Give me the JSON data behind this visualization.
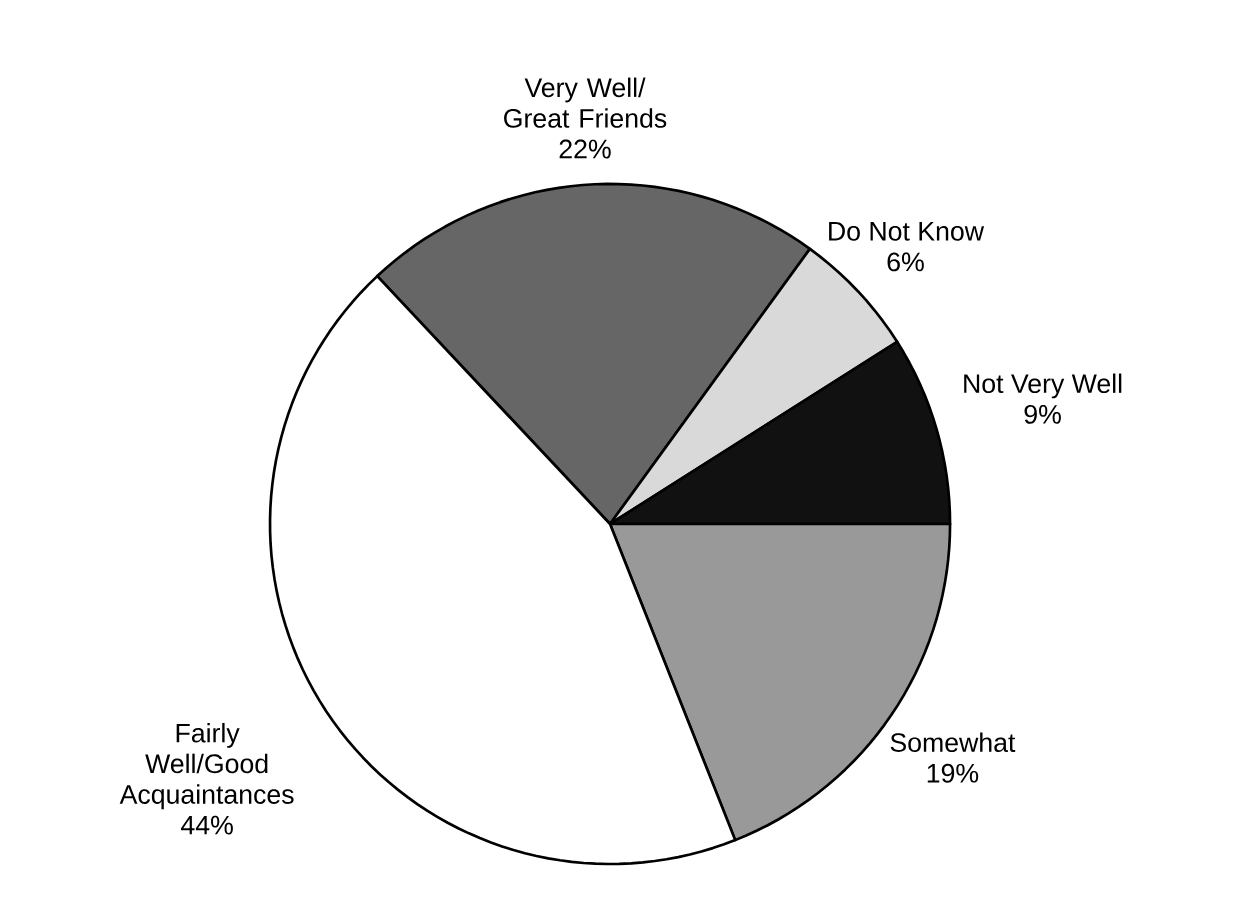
{
  "chart_data": {
    "type": "pie",
    "categories": [
      "Very Well/ Great Friends",
      "Do Not Know",
      "Not Very Well",
      "Somewhat",
      "Fairly Well/Good Acquaintances"
    ],
    "values": [
      22,
      6,
      9,
      19,
      44
    ],
    "value_labels": [
      "22%",
      "6%",
      "9%",
      "19%",
      "44%"
    ],
    "colors": [
      "#666666",
      "#d9d9d9",
      "#111111",
      "#999999",
      "#ffffff"
    ]
  }
}
